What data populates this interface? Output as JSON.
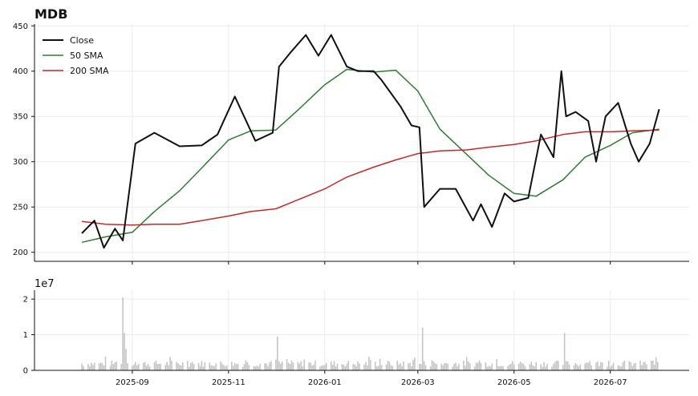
{
  "chart_data": {
    "type": "line",
    "title": "MDB",
    "price_panel": {
      "ylim": [
        190,
        452
      ],
      "yticks": [
        200,
        250,
        300,
        350,
        400,
        450
      ],
      "grid": true,
      "legend_placement": "top-left",
      "series": [
        {
          "name": "Close",
          "color": "#111111",
          "x": [
            "2025-07-31",
            "2025-08-08",
            "2025-08-14",
            "2025-08-21",
            "2025-08-26",
            "2025-09-03",
            "2025-09-15",
            "2025-10-01",
            "2025-10-15",
            "2025-10-25",
            "2025-11-05",
            "2025-11-18",
            "2025-11-29",
            "2025-12-03",
            "2025-12-10",
            "2025-12-20",
            "2025-12-28",
            "2026-01-05",
            "2026-01-15",
            "2026-01-22",
            "2026-02-01",
            "2026-02-06",
            "2026-02-18",
            "2026-02-25",
            "2026-03-02",
            "2026-03-05",
            "2026-03-15",
            "2026-03-25",
            "2026-04-05",
            "2026-04-10",
            "2026-04-17",
            "2026-04-25",
            "2026-05-01",
            "2026-05-10",
            "2026-05-18",
            "2026-05-26",
            "2026-05-31",
            "2026-06-03",
            "2026-06-09",
            "2026-06-17",
            "2026-06-22",
            "2026-06-28",
            "2026-07-06",
            "2026-07-14",
            "2026-07-19",
            "2026-07-26",
            "2026-08-01"
          ],
          "values": [
            221,
            235,
            205,
            226,
            213,
            320,
            332,
            317,
            318,
            330,
            372,
            323,
            332,
            405,
            420,
            440,
            417,
            440,
            405,
            400,
            400,
            390,
            361,
            340,
            338,
            250,
            270,
            270,
            235,
            253,
            228,
            265,
            256,
            260,
            330,
            305,
            400,
            350,
            355,
            345,
            300,
            350,
            365,
            320,
            300,
            320,
            358
          ]
        },
        {
          "name": "50 SMA",
          "color": "#2e7d32",
          "x": [
            "2025-07-31",
            "2025-08-15",
            "2025-09-01",
            "2025-09-15",
            "2025-10-01",
            "2025-10-15",
            "2025-11-01",
            "2025-11-15",
            "2025-12-01",
            "2025-12-15",
            "2026-01-01",
            "2026-01-15",
            "2026-02-01",
            "2026-02-15",
            "2026-03-01",
            "2026-03-15",
            "2026-04-01",
            "2026-04-15",
            "2026-05-01",
            "2026-05-15",
            "2026-06-01",
            "2026-06-15",
            "2026-07-01",
            "2026-07-15",
            "2026-08-01"
          ],
          "values": [
            211,
            217,
            222,
            245,
            268,
            293,
            324,
            334,
            335,
            357,
            385,
            402,
            399,
            401,
            378,
            336,
            308,
            285,
            265,
            262,
            280,
            305,
            318,
            332,
            336
          ]
        },
        {
          "name": "200 SMA",
          "color": "#c62828",
          "x": [
            "2025-07-31",
            "2025-08-15",
            "2025-09-01",
            "2025-09-15",
            "2025-10-01",
            "2025-10-15",
            "2025-11-01",
            "2025-11-15",
            "2025-12-01",
            "2025-12-15",
            "2026-01-01",
            "2026-01-15",
            "2026-02-01",
            "2026-02-15",
            "2026-03-01",
            "2026-03-15",
            "2026-04-01",
            "2026-04-15",
            "2026-05-01",
            "2026-05-15",
            "2026-06-01",
            "2026-06-15",
            "2026-07-01",
            "2026-07-15",
            "2026-08-01"
          ],
          "values": [
            234,
            231,
            230,
            231,
            231,
            235,
            240,
            245,
            248,
            258,
            270,
            283,
            294,
            302,
            309,
            312,
            313,
            316,
            319,
            323,
            330,
            333,
            333,
            334,
            335
          ]
        }
      ]
    },
    "volume_panel": {
      "offset_label": "1e7",
      "ylim": [
        0,
        2.25
      ],
      "yticks": [
        0,
        1,
        2
      ],
      "grid": true,
      "bar_color": "#c4c4c4",
      "spikes": [
        {
          "x": "2025-08-26",
          "value": 2.05
        },
        {
          "x": "2025-08-27",
          "value": 1.05
        },
        {
          "x": "2025-08-28",
          "value": 0.6
        },
        {
          "x": "2025-12-02",
          "value": 0.95
        },
        {
          "x": "2026-03-04",
          "value": 1.2
        },
        {
          "x": "2026-06-02",
          "value": 1.05
        },
        {
          "x": "2026-06-06",
          "value": 0.7
        }
      ]
    },
    "x_ticks": [
      "2025-09",
      "2025-11",
      "2026-01",
      "2026-03",
      "2026-05",
      "2026-07"
    ]
  }
}
